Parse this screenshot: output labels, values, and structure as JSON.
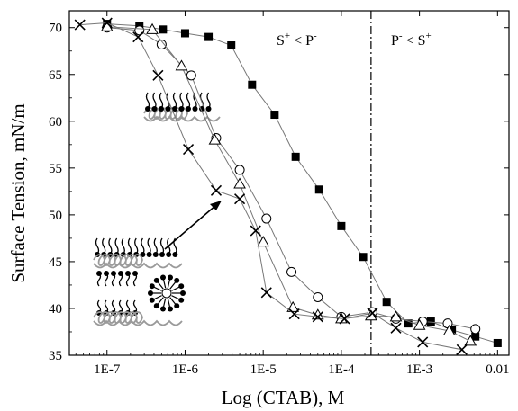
{
  "chart_data": {
    "type": "scatter",
    "title": "",
    "xlabel": "Log (CTAB), M",
    "ylabel": "Surface Tension, mN/m",
    "x_scale": "log",
    "xlim": [
      3.3e-08,
      0.014
    ],
    "ylim": [
      35,
      71.8
    ],
    "x_ticks": [
      1e-07,
      1e-06,
      1e-05,
      0.0001,
      0.001,
      0.01
    ],
    "x_tick_labels": [
      "1E-7",
      "1E-6",
      "1E-5",
      "1E-4",
      "1E-3",
      "0.01"
    ],
    "y_ticks": [
      35,
      40,
      45,
      50,
      55,
      60,
      65,
      70
    ],
    "grid": false,
    "legend": "none",
    "series": [
      {
        "marker": "filled-square",
        "x": [
          1e-07,
          2.6e-07,
          5.2e-07,
          1e-06,
          2e-06,
          3.9e-06,
          7.2e-06,
          1.4e-05,
          2.6e-05,
          5.2e-05,
          0.0001,
          0.00019,
          0.00038,
          0.00072,
          0.0014,
          0.0026,
          0.0052,
          0.01
        ],
        "y": [
          70.4,
          70.2,
          69.8,
          69.4,
          69.0,
          68.1,
          63.9,
          60.7,
          56.2,
          52.7,
          48.8,
          45.5,
          40.7,
          38.4,
          38.6,
          37.7,
          37.0,
          36.3
        ]
      },
      {
        "marker": "open-circle",
        "x": [
          1e-07,
          2.6e-07,
          5e-07,
          1.2e-06,
          2.5e-06,
          5e-06,
          1.1e-05,
          2.3e-05,
          5e-05,
          0.0001,
          0.00025,
          0.0005,
          0.0011,
          0.0023,
          0.0052
        ],
        "y": [
          70.0,
          69.7,
          68.2,
          64.9,
          58.2,
          54.8,
          49.6,
          43.9,
          41.2,
          39.1,
          39.6,
          38.9,
          38.6,
          38.4,
          37.8
        ]
      },
      {
        "marker": "open-triangle",
        "x": [
          1e-07,
          3.8e-07,
          9e-07,
          2.4e-06,
          5e-06,
          1e-05,
          2.4e-05,
          5e-05,
          0.0001,
          0.00024,
          0.0005,
          0.001,
          0.0024,
          0.0045
        ],
        "y": [
          70.1,
          69.8,
          65.9,
          58.0,
          53.3,
          47.1,
          40.1,
          39.3,
          38.9,
          39.2,
          39.1,
          38.2,
          37.6,
          36.5
        ]
      },
      {
        "marker": "cross",
        "x": [
          4.5e-08,
          1e-07,
          2.5e-07,
          4.5e-07,
          1.1e-06,
          2.5e-06,
          5e-06,
          8e-06,
          1.1e-05,
          2.5e-05,
          5e-05,
          0.00011,
          0.00025,
          0.0005,
          0.0011,
          0.0035
        ],
        "y": [
          70.3,
          70.5,
          69.0,
          64.9,
          57.0,
          52.6,
          51.7,
          48.3,
          41.7,
          39.4,
          39.1,
          38.9,
          39.5,
          37.9,
          36.4,
          35.6
        ]
      }
    ],
    "divider": {
      "x": 0.00024,
      "style": "dash-dot"
    },
    "annotations": [
      {
        "base": "S",
        "sup": "+",
        "mid": " < ",
        "base2": "P",
        "sup2": "-"
      },
      {
        "base": "P",
        "sup": "-",
        "mid": " < ",
        "base2": "S",
        "sup2": "+"
      }
    ]
  }
}
